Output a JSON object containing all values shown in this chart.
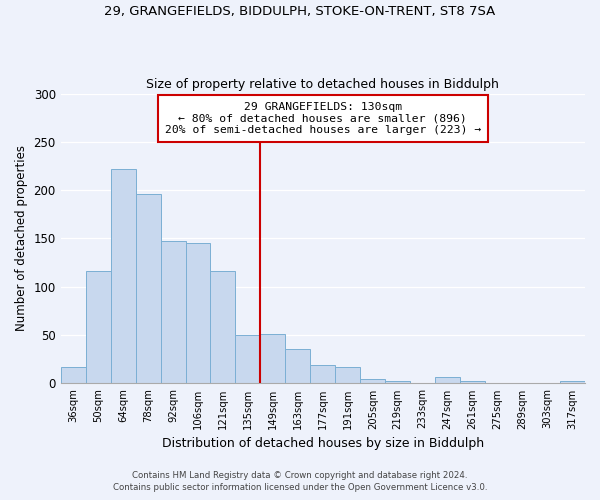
{
  "title1": "29, GRANGEFIELDS, BIDDULPH, STOKE-ON-TRENT, ST8 7SA",
  "title2": "Size of property relative to detached houses in Biddulph",
  "xlabel": "Distribution of detached houses by size in Biddulph",
  "ylabel": "Number of detached properties",
  "categories": [
    "36sqm",
    "50sqm",
    "64sqm",
    "78sqm",
    "92sqm",
    "106sqm",
    "121sqm",
    "135sqm",
    "149sqm",
    "163sqm",
    "177sqm",
    "191sqm",
    "205sqm",
    "219sqm",
    "233sqm",
    "247sqm",
    "261sqm",
    "275sqm",
    "289sqm",
    "303sqm",
    "317sqm"
  ],
  "values": [
    17,
    116,
    222,
    196,
    147,
    145,
    116,
    50,
    51,
    36,
    19,
    17,
    5,
    3,
    0,
    7,
    2,
    0,
    0,
    0,
    2
  ],
  "bar_color": "#c8d8ee",
  "bar_edge_color": "#7bafd4",
  "vline_color": "#cc0000",
  "annotation_title": "29 GRANGEFIELDS: 130sqm",
  "annotation_line1": "← 80% of detached houses are smaller (896)",
  "annotation_line2": "20% of semi-detached houses are larger (223) →",
  "annotation_box_color": "#ffffff",
  "annotation_box_edge_color": "#cc0000",
  "ylim": [
    0,
    300
  ],
  "yticks": [
    0,
    50,
    100,
    150,
    200,
    250,
    300
  ],
  "footer1": "Contains HM Land Registry data © Crown copyright and database right 2024.",
  "footer2": "Contains public sector information licensed under the Open Government Licence v3.0.",
  "bg_color": "#eef2fb",
  "plot_bg_color": "#eef2fb",
  "grid_color": "#ffffff",
  "vline_bar_index": 7
}
